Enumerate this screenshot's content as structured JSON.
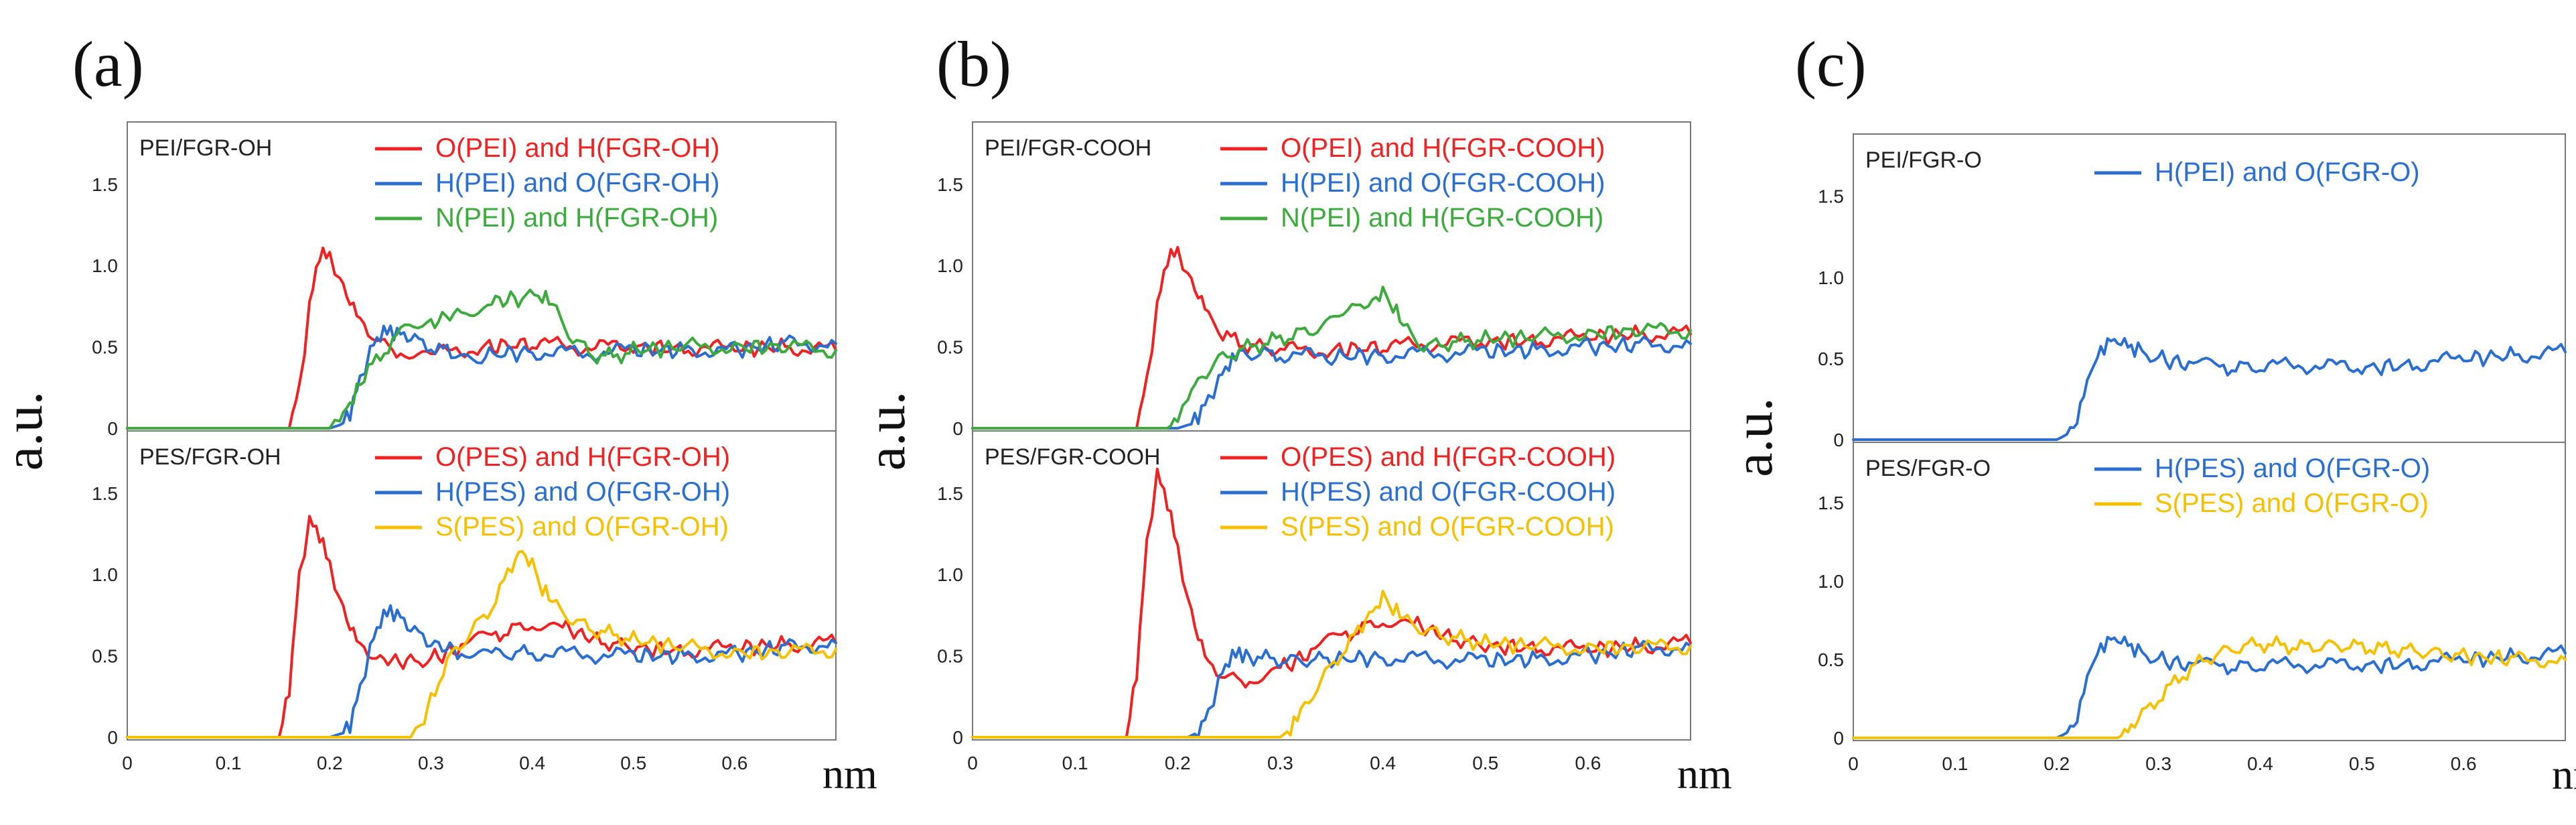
{
  "figure": {
    "y_label": "a.u.",
    "x_unit": "nm",
    "y_ticks": [
      "0",
      "0.5",
      "1.0",
      "1.5"
    ],
    "x_ticks": [
      "0",
      "0.1",
      "0.2",
      "0.3",
      "0.4",
      "0.5",
      "0.6"
    ]
  },
  "chart_data": [
    {
      "type": "line",
      "panel": "(a)",
      "subtitle": "PEI/FGR-OH",
      "xlim": [
        0,
        0.7
      ],
      "ylim": [
        0,
        1.8
      ],
      "series": [
        {
          "name": "O(PEI) and H(FGR-OH)",
          "color": "#ee2222",
          "x": [
            0,
            0.16,
            0.17,
            0.18,
            0.19,
            0.2,
            0.21,
            0.22,
            0.23,
            0.25,
            0.27,
            0.3,
            0.35,
            0.4,
            0.45,
            0.5,
            0.55,
            0.6,
            0.65,
            0.7
          ],
          "y": [
            0,
            0,
            0.25,
            0.75,
            1.08,
            1.05,
            0.92,
            0.78,
            0.66,
            0.52,
            0.47,
            0.45,
            0.5,
            0.52,
            0.5,
            0.5,
            0.49,
            0.49,
            0.5,
            0.48
          ]
        },
        {
          "name": "H(PEI) and O(FGR-OH)",
          "color": "#2a6fd0",
          "x": [
            0,
            0.2,
            0.21,
            0.22,
            0.23,
            0.24,
            0.25,
            0.26,
            0.27,
            0.28,
            0.3,
            0.32,
            0.35,
            0.4,
            0.45,
            0.5,
            0.55,
            0.6,
            0.65,
            0.7
          ],
          "y": [
            0,
            0,
            0.02,
            0.1,
            0.3,
            0.48,
            0.58,
            0.6,
            0.58,
            0.55,
            0.5,
            0.46,
            0.45,
            0.47,
            0.46,
            0.48,
            0.48,
            0.48,
            0.52,
            0.52
          ]
        },
        {
          "name": "N(PEI) and H(FGR-OH)",
          "color": "#3caa3c",
          "x": [
            0,
            0.2,
            0.21,
            0.22,
            0.23,
            0.25,
            0.27,
            0.3,
            0.33,
            0.36,
            0.39,
            0.41,
            0.42,
            0.44,
            0.46,
            0.48,
            0.5,
            0.55,
            0.6,
            0.65,
            0.7
          ],
          "y": [
            0,
            0,
            0.05,
            0.15,
            0.28,
            0.45,
            0.58,
            0.65,
            0.72,
            0.78,
            0.8,
            0.82,
            0.75,
            0.55,
            0.45,
            0.44,
            0.48,
            0.5,
            0.5,
            0.5,
            0.48
          ]
        }
      ]
    },
    {
      "type": "line",
      "panel": "(a)",
      "subtitle": "PES/FGR-OH",
      "xlim": [
        0,
        0.7
      ],
      "ylim": [
        0,
        1.8
      ],
      "series": [
        {
          "name": "O(PES) and H(FGR-OH)",
          "color": "#ee2222",
          "x": [
            0,
            0.15,
            0.16,
            0.17,
            0.18,
            0.19,
            0.2,
            0.21,
            0.22,
            0.23,
            0.25,
            0.28,
            0.3,
            0.33,
            0.36,
            0.4,
            0.43,
            0.46,
            0.5,
            0.55,
            0.6,
            0.65,
            0.7
          ],
          "y": [
            0,
            0,
            0.3,
            1.0,
            1.33,
            1.25,
            1.05,
            0.85,
            0.68,
            0.56,
            0.48,
            0.46,
            0.48,
            0.55,
            0.62,
            0.7,
            0.68,
            0.6,
            0.55,
            0.53,
            0.55,
            0.57,
            0.58
          ]
        },
        {
          "name": "H(PES) and O(FGR-OH)",
          "color": "#2a6fd0",
          "x": [
            0,
            0.2,
            0.21,
            0.22,
            0.23,
            0.24,
            0.25,
            0.26,
            0.27,
            0.28,
            0.3,
            0.33,
            0.36,
            0.4,
            0.45,
            0.5,
            0.55,
            0.6,
            0.65,
            0.7
          ],
          "y": [
            0,
            0,
            0.02,
            0.08,
            0.3,
            0.55,
            0.72,
            0.78,
            0.74,
            0.66,
            0.58,
            0.52,
            0.51,
            0.52,
            0.51,
            0.5,
            0.5,
            0.51,
            0.55,
            0.58
          ]
        },
        {
          "name": "S(PES) and O(FGR-OH)",
          "color": "#f5c000",
          "x": [
            0,
            0.28,
            0.29,
            0.3,
            0.32,
            0.34,
            0.36,
            0.38,
            0.39,
            0.4,
            0.41,
            0.42,
            0.44,
            0.46,
            0.5,
            0.55,
            0.6,
            0.65,
            0.7
          ],
          "y": [
            0,
            0,
            0.05,
            0.25,
            0.5,
            0.65,
            0.8,
            1.05,
            1.15,
            1.05,
            0.92,
            0.82,
            0.72,
            0.66,
            0.6,
            0.55,
            0.52,
            0.52,
            0.54
          ]
        }
      ]
    },
    {
      "type": "line",
      "panel": "(b)",
      "subtitle": "PEI/FGR-COOH",
      "xlim": [
        0,
        0.7
      ],
      "ylim": [
        0,
        1.8
      ],
      "series": [
        {
          "name": "O(PEI) and H(FGR-COOH)",
          "color": "#ee2222",
          "x": [
            0,
            0.16,
            0.17,
            0.18,
            0.19,
            0.2,
            0.21,
            0.22,
            0.23,
            0.24,
            0.26,
            0.28,
            0.3,
            0.35,
            0.4,
            0.45,
            0.5,
            0.55,
            0.6,
            0.65,
            0.7
          ],
          "y": [
            0,
            0,
            0.3,
            0.75,
            1.05,
            1.08,
            0.95,
            0.82,
            0.7,
            0.6,
            0.52,
            0.5,
            0.48,
            0.48,
            0.5,
            0.52,
            0.53,
            0.54,
            0.56,
            0.58,
            0.58
          ]
        },
        {
          "name": "H(PEI) and O(FGR-COOH)",
          "color": "#2a6fd0",
          "x": [
            0,
            0.2,
            0.21,
            0.22,
            0.23,
            0.24,
            0.25,
            0.26,
            0.28,
            0.3,
            0.35,
            0.4,
            0.45,
            0.5,
            0.55,
            0.6,
            0.65,
            0.7
          ],
          "y": [
            0,
            0,
            0.02,
            0.08,
            0.18,
            0.3,
            0.4,
            0.45,
            0.46,
            0.45,
            0.44,
            0.45,
            0.46,
            0.47,
            0.48,
            0.5,
            0.51,
            0.52
          ]
        },
        {
          "name": "N(PEI) and H(FGR-COOH)",
          "color": "#3caa3c",
          "x": [
            0,
            0.19,
            0.2,
            0.21,
            0.22,
            0.24,
            0.26,
            0.3,
            0.34,
            0.37,
            0.39,
            0.4,
            0.41,
            0.42,
            0.44,
            0.46,
            0.5,
            0.55,
            0.6,
            0.65,
            0.7
          ],
          "y": [
            0,
            0,
            0.05,
            0.18,
            0.3,
            0.42,
            0.48,
            0.55,
            0.62,
            0.72,
            0.8,
            0.82,
            0.76,
            0.62,
            0.5,
            0.52,
            0.55,
            0.56,
            0.58,
            0.6,
            0.6
          ]
        }
      ]
    },
    {
      "type": "line",
      "panel": "(b)",
      "subtitle": "PES/FGR-COOH",
      "xlim": [
        0,
        0.7
      ],
      "ylim": [
        0,
        1.8
      ],
      "series": [
        {
          "name": "O(PES) and H(FGR-COOH)",
          "color": "#ee2222",
          "x": [
            0,
            0.15,
            0.16,
            0.17,
            0.18,
            0.19,
            0.2,
            0.21,
            0.22,
            0.23,
            0.25,
            0.27,
            0.3,
            0.33,
            0.36,
            0.4,
            0.43,
            0.46,
            0.5,
            0.55,
            0.6,
            0.65,
            0.7
          ],
          "y": [
            0,
            0,
            0.4,
            1.2,
            1.62,
            1.45,
            1.15,
            0.85,
            0.62,
            0.45,
            0.36,
            0.35,
            0.42,
            0.52,
            0.62,
            0.72,
            0.7,
            0.62,
            0.56,
            0.55,
            0.54,
            0.56,
            0.58
          ]
        },
        {
          "name": "H(PES) and O(FGR-COOH)",
          "color": "#2a6fd0",
          "x": [
            0,
            0.21,
            0.22,
            0.23,
            0.24,
            0.25,
            0.26,
            0.27,
            0.29,
            0.31,
            0.35,
            0.4,
            0.45,
            0.5,
            0.55,
            0.6,
            0.65,
            0.7
          ],
          "y": [
            0,
            0,
            0.03,
            0.15,
            0.35,
            0.48,
            0.52,
            0.5,
            0.48,
            0.47,
            0.48,
            0.49,
            0.48,
            0.47,
            0.48,
            0.5,
            0.54,
            0.56
          ]
        },
        {
          "name": "S(PES) and O(FGR-COOH)",
          "color": "#f5c000",
          "x": [
            0,
            0.3,
            0.31,
            0.32,
            0.34,
            0.36,
            0.38,
            0.39,
            0.4,
            0.41,
            0.42,
            0.44,
            0.46,
            0.5,
            0.55,
            0.6,
            0.65,
            0.7
          ],
          "y": [
            0,
            0,
            0.05,
            0.15,
            0.35,
            0.52,
            0.68,
            0.78,
            0.85,
            0.8,
            0.72,
            0.66,
            0.62,
            0.58,
            0.56,
            0.55,
            0.55,
            0.56
          ]
        }
      ]
    },
    {
      "type": "line",
      "panel": "(c)",
      "subtitle": "PEI/FGR-O",
      "xlim": [
        0,
        0.7
      ],
      "ylim": [
        0,
        1.8
      ],
      "series": [
        {
          "name": "H(PEI) and O(FGR-O)",
          "color": "#2a6fd0",
          "x": [
            0,
            0.2,
            0.21,
            0.22,
            0.23,
            0.24,
            0.25,
            0.26,
            0.27,
            0.28,
            0.3,
            0.33,
            0.36,
            0.4,
            0.45,
            0.5,
            0.55,
            0.6,
            0.65,
            0.7
          ],
          "y": [
            0,
            0,
            0.03,
            0.12,
            0.35,
            0.52,
            0.6,
            0.61,
            0.58,
            0.55,
            0.5,
            0.46,
            0.44,
            0.45,
            0.46,
            0.44,
            0.46,
            0.5,
            0.52,
            0.54
          ]
        }
      ]
    },
    {
      "type": "line",
      "panel": "(c)",
      "subtitle": "PES/FGR-O",
      "xlim": [
        0,
        0.7
      ],
      "ylim": [
        0,
        1.8
      ],
      "series": [
        {
          "name": "H(PES) and O(FGR-O)",
          "color": "#2a6fd0",
          "x": [
            0,
            0.2,
            0.21,
            0.22,
            0.23,
            0.24,
            0.25,
            0.26,
            0.27,
            0.28,
            0.3,
            0.33,
            0.36,
            0.4,
            0.45,
            0.5,
            0.55,
            0.6,
            0.65,
            0.7
          ],
          "y": [
            0,
            0,
            0.03,
            0.12,
            0.38,
            0.55,
            0.62,
            0.63,
            0.6,
            0.55,
            0.5,
            0.46,
            0.45,
            0.46,
            0.47,
            0.46,
            0.47,
            0.5,
            0.52,
            0.54
          ]
        },
        {
          "name": "S(PES) and O(FGR-O)",
          "color": "#f5c000",
          "x": [
            0,
            0.26,
            0.27,
            0.28,
            0.3,
            0.32,
            0.34,
            0.36,
            0.38,
            0.4,
            0.44,
            0.48,
            0.52,
            0.56,
            0.6,
            0.65,
            0.7
          ],
          "y": [
            0,
            0,
            0.04,
            0.12,
            0.25,
            0.38,
            0.48,
            0.54,
            0.58,
            0.6,
            0.58,
            0.59,
            0.57,
            0.55,
            0.52,
            0.5,
            0.5
          ]
        }
      ]
    }
  ]
}
